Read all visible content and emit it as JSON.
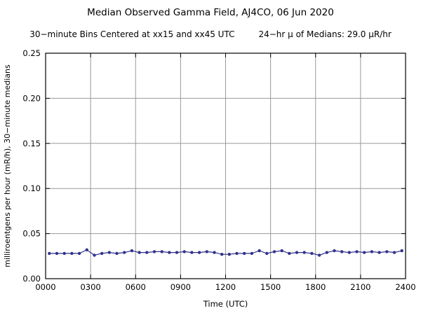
{
  "chart_data": {
    "type": "line",
    "title": "Median Observed Gamma Field, AJ4CO, 06 Jun 2020",
    "subtitle_left": "30−minute Bins Centered at xx15 and xx45 UTC",
    "subtitle_right": "24−hr μ of Medians: 29.0 μR/hr",
    "xlabel": "Time (UTC)",
    "ylabel": "milliroentgens per hour (mR/h), 30−minute medians",
    "ylim": [
      0,
      0.25
    ],
    "xlim_minutes": [
      0,
      1440
    ],
    "x_ticks": [
      "0000",
      "0300",
      "0600",
      "0900",
      "1200",
      "1500",
      "1800",
      "2100",
      "2400"
    ],
    "y_ticks": [
      "0.00",
      "0.05",
      "0.10",
      "0.15",
      "0.20",
      "0.25"
    ],
    "grid": true,
    "legend": "none",
    "line_color": "#32328c",
    "grid_color": "#999999",
    "x": [
      "0015",
      "0045",
      "0115",
      "0145",
      "0215",
      "0245",
      "0315",
      "0345",
      "0415",
      "0445",
      "0515",
      "0545",
      "0615",
      "0645",
      "0715",
      "0745",
      "0815",
      "0845",
      "0915",
      "0945",
      "1015",
      "1045",
      "1115",
      "1145",
      "1215",
      "1245",
      "1315",
      "1345",
      "1415",
      "1445",
      "1515",
      "1545",
      "1615",
      "1645",
      "1715",
      "1745",
      "1815",
      "1845",
      "1915",
      "1945",
      "2015",
      "2045",
      "2115",
      "2145",
      "2215",
      "2245",
      "2315",
      "2345"
    ],
    "values": [
      0.028,
      0.028,
      0.028,
      0.028,
      0.028,
      0.032,
      0.026,
      0.028,
      0.029,
      0.028,
      0.029,
      0.031,
      0.029,
      0.029,
      0.03,
      0.03,
      0.029,
      0.029,
      0.03,
      0.029,
      0.029,
      0.03,
      0.029,
      0.027,
      0.027,
      0.028,
      0.028,
      0.028,
      0.031,
      0.028,
      0.03,
      0.031,
      0.028,
      0.029,
      0.029,
      0.028,
      0.026,
      0.029,
      0.031,
      0.03,
      0.029,
      0.03,
      0.029,
      0.03,
      0.029,
      0.03,
      0.029,
      0.031
    ]
  }
}
